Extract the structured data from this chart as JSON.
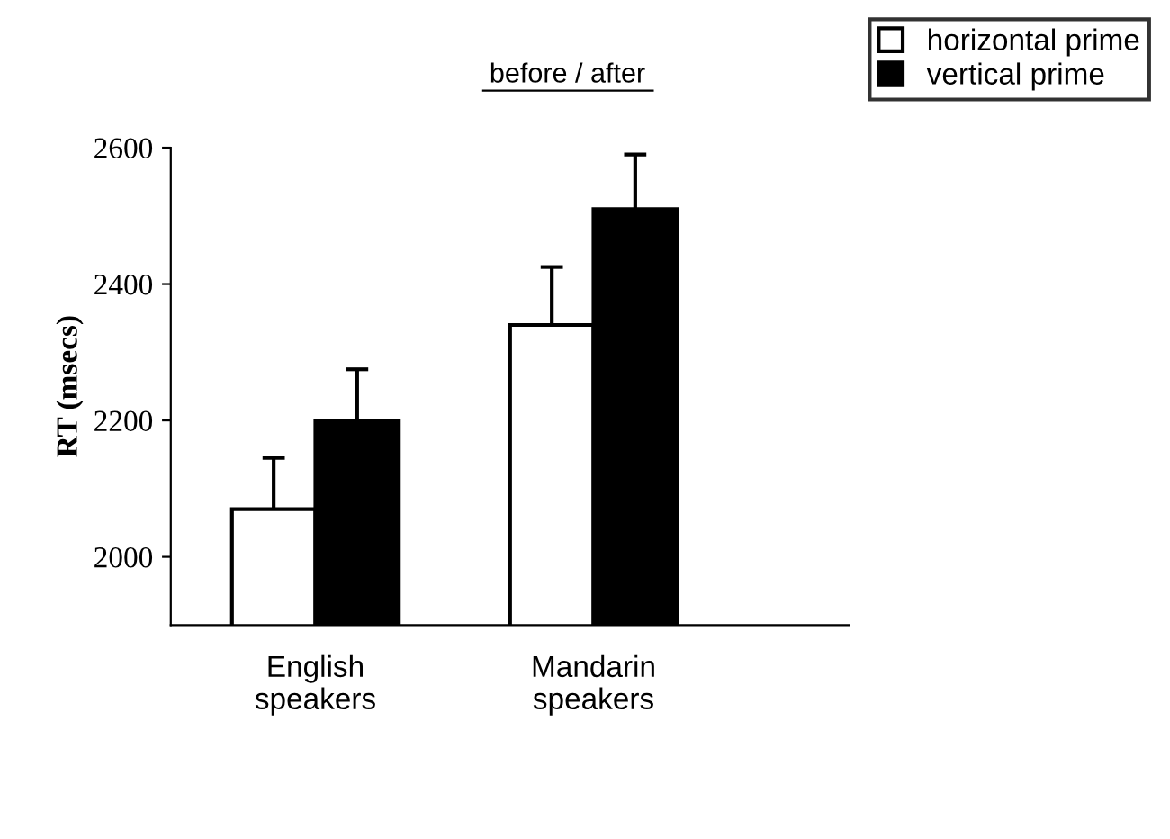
{
  "chart_data": {
    "type": "bar",
    "categories": [
      "English\nspeakers",
      "Mandarin\nspeakers"
    ],
    "series": [
      {
        "name": "horizontal prime",
        "color": "#ffffff",
        "values": [
          2070,
          2340
        ],
        "errors": [
          [
            2070,
            2145
          ],
          [
            2340,
            2425
          ]
        ]
      },
      {
        "name": "vertical prime",
        "color": "#000000",
        "values": [
          2200,
          2510
        ],
        "errors": [
          [
            2200,
            2275
          ],
          [
            2510,
            2590
          ]
        ]
      }
    ],
    "ylabel": "RT (msecs)",
    "annotations": [
      "before / after"
    ],
    "ylim": [
      1900,
      2600
    ],
    "yticks": [
      2000,
      2200,
      2400,
      2600
    ],
    "grid": false,
    "legend": "top right"
  }
}
